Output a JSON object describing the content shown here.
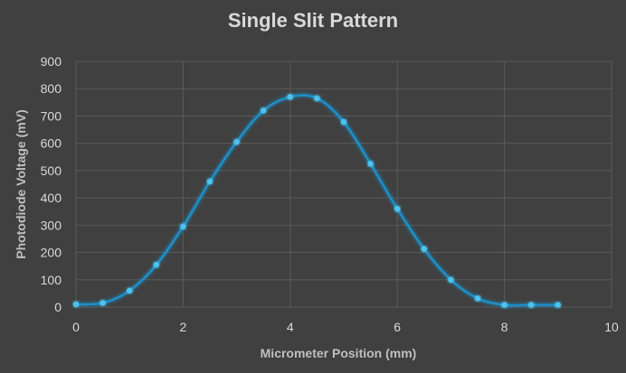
{
  "chart_data": {
    "type": "scatter",
    "title": "Single Slit Pattern",
    "xlabel": "Micrometer Position (mm)",
    "ylabel": "Photodiode Voltage (mV)",
    "xlim": [
      0,
      10
    ],
    "ylim": [
      0,
      900
    ],
    "xticks": [
      0,
      2,
      4,
      6,
      8,
      10
    ],
    "yticks": [
      0,
      100,
      200,
      300,
      400,
      500,
      600,
      700,
      800,
      900
    ],
    "grid": true,
    "legend": "none",
    "line_style": "smoothed line with markers",
    "series": [
      {
        "color": "#1f8fc8",
        "x": [
          0,
          0.5,
          1,
          1.5,
          2,
          2.5,
          3,
          3.5,
          4,
          4.5,
          5,
          5.5,
          6,
          6.5,
          7,
          7.5,
          8,
          8.5,
          9
        ],
        "y": [
          10,
          15,
          60,
          155,
          295,
          460,
          605,
          720,
          770,
          765,
          678,
          525,
          360,
          213,
          100,
          32,
          8,
          8,
          8
        ]
      }
    ]
  },
  "colors": {
    "background": "#404040",
    "grid": "#5a5a5a",
    "text": "#d9d9d9",
    "marker": "#4cc3ee",
    "line": "#1f8fc8"
  }
}
